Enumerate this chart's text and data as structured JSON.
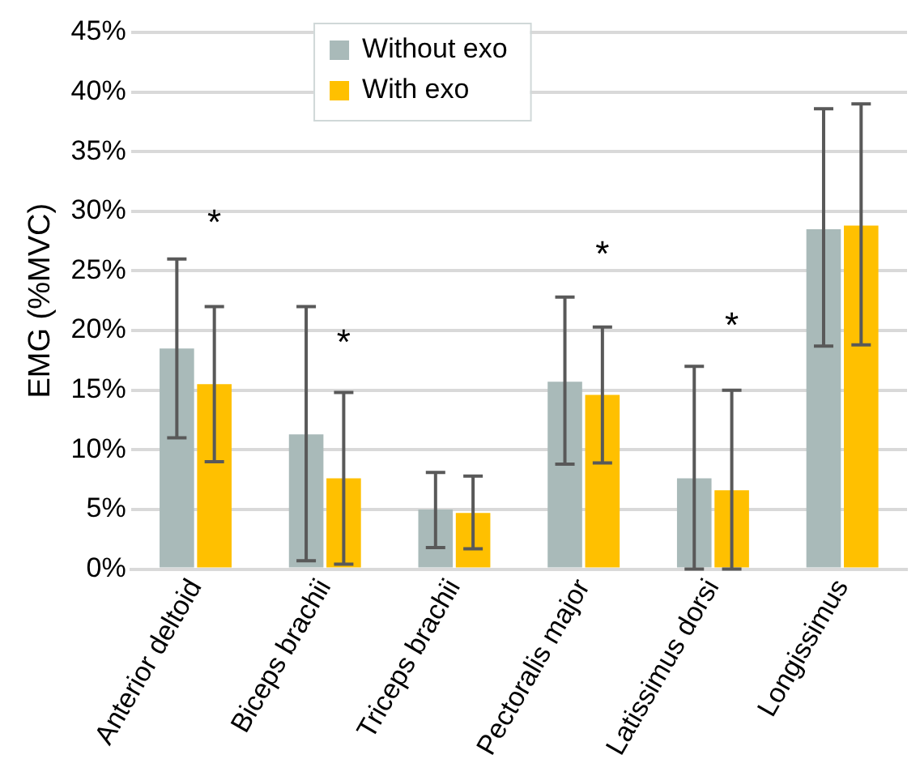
{
  "chart_data": {
    "type": "bar",
    "ylabel": "EMG (%MVC)",
    "categories": [
      "Anterior deltoid",
      "Biceps brachii",
      "Triceps brachii",
      "Pectoralis major",
      "Latissimus dorsi",
      "Longissimus"
    ],
    "series": [
      {
        "name": "Without exo",
        "color": "#a9bab9",
        "values": [
          18.5,
          11.3,
          5.0,
          15.7,
          7.6,
          28.5
        ],
        "errors": [
          [
            11,
            26
          ],
          [
            0.7,
            22
          ],
          [
            1.8,
            8.1
          ],
          [
            8.8,
            22.8
          ],
          [
            0,
            17
          ],
          [
            18.7,
            38.6
          ]
        ]
      },
      {
        "name": "With exo",
        "color": "#ffc000",
        "values": [
          15.5,
          7.6,
          4.7,
          14.6,
          6.6,
          28.8
        ],
        "errors": [
          [
            9,
            22
          ],
          [
            0.4,
            14.8
          ],
          [
            1.7,
            7.8
          ],
          [
            8.9,
            20.3
          ],
          [
            0,
            15
          ],
          [
            18.8,
            39
          ]
        ]
      }
    ],
    "ylim": [
      0,
      45
    ],
    "yticks": [
      {
        "value": 0,
        "label": "0%"
      },
      {
        "value": 5,
        "label": "5%"
      },
      {
        "value": 10,
        "label": "10%"
      },
      {
        "value": 15,
        "label": "15%"
      },
      {
        "value": 20,
        "label": "20%"
      },
      {
        "value": 25,
        "label": "25%"
      },
      {
        "value": 30,
        "label": "30%"
      },
      {
        "value": 35,
        "label": "35%"
      },
      {
        "value": 40,
        "label": "40%"
      },
      {
        "value": 45,
        "label": "45%"
      }
    ],
    "annotations": [
      "*",
      "*",
      "*",
      "*"
    ],
    "grid": "y",
    "legend": "top"
  }
}
